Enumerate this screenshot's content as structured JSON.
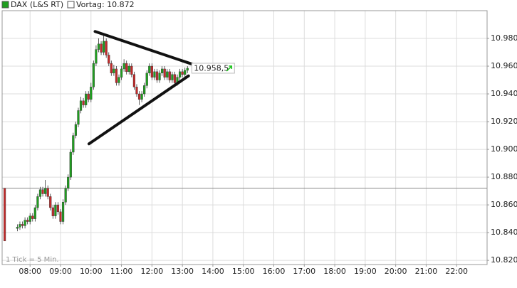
{
  "chart_data": {
    "type": "candlestick",
    "series_name": "DAX (L&S RT)",
    "reference_label": "Vortag: 10.872",
    "reference_line": 10872,
    "tick_note": "1 Tick = 5 Min.",
    "up_color": "#1f9e1f",
    "down_color": "#c42a2a",
    "x": [
      430,
      455,
      460,
      465,
      470,
      475,
      480,
      485,
      490,
      495,
      500,
      505,
      510,
      515,
      520,
      525,
      530,
      535,
      540,
      545,
      550,
      555,
      560,
      565,
      570,
      575,
      580,
      585,
      590,
      595,
      600,
      605,
      610,
      615,
      620,
      625,
      630,
      635,
      640,
      645,
      650,
      655,
      660,
      665,
      670,
      675,
      680,
      685,
      690,
      695,
      700,
      705,
      710,
      715,
      720,
      725,
      730,
      735,
      740,
      745,
      750,
      755,
      760,
      765,
      770,
      775,
      780,
      785,
      790
    ],
    "open": [
      10872,
      10843,
      10844,
      10846,
      10845,
      10849,
      10848,
      10852,
      10850,
      10858,
      10866,
      10871,
      10868,
      10872,
      10866,
      10858,
      10852,
      10860,
      10855,
      10848,
      10862,
      10872,
      10880,
      10898,
      10910,
      10918,
      10928,
      10935,
      10932,
      10940,
      10936,
      10945,
      10962,
      10972,
      10976,
      10970,
      10978,
      10968,
      10962,
      10955,
      10958,
      10948,
      10952,
      10958,
      10962,
      10956,
      10960,
      10954,
      10945,
      10940,
      10936,
      10940,
      10946,
      10955,
      10960,
      10952,
      10956,
      10950,
      10955,
      10958,
      10952,
      10956,
      10950,
      10954,
      10948,
      10952,
      10956,
      10954,
      10957
    ],
    "high": [
      10872,
      10846,
      10848,
      10848,
      10851,
      10851,
      10854,
      10854,
      10860,
      10868,
      10873,
      10873,
      10878,
      10874,
      10868,
      10860,
      10862,
      10862,
      10857,
      10864,
      10874,
      10882,
      10900,
      10912,
      10920,
      10930,
      10938,
      10937,
      10942,
      10942,
      10948,
      10964,
      10975,
      10980,
      10978,
      10982,
      10980,
      10970,
      10964,
      10961,
      10960,
      10954,
      10960,
      10965,
      10964,
      10962,
      10962,
      10956,
      10947,
      10942,
      10942,
      10948,
      10957,
      10962,
      10962,
      10958,
      10958,
      10957,
      10960,
      10960,
      10958,
      10958,
      10956,
      10956,
      10954,
      10958,
      10958,
      10959,
      10960
    ],
    "low": [
      10834,
      10841,
      10842,
      10843,
      10843,
      10846,
      10846,
      10848,
      10848,
      10856,
      10864,
      10866,
      10866,
      10864,
      10856,
      10850,
      10850,
      10853,
      10846,
      10846,
      10860,
      10870,
      10878,
      10896,
      10908,
      10916,
      10926,
      10930,
      10930,
      10934,
      10934,
      10943,
      10960,
      10970,
      10968,
      10968,
      10966,
      10960,
      10953,
      10953,
      10946,
      10946,
      10950,
      10956,
      10954,
      10954,
      10952,
      10943,
      10938,
      10932,
      10934,
      10938,
      10944,
      10953,
      10950,
      10950,
      10948,
      10948,
      10953,
      10950,
      10950,
      10948,
      10948,
      10946,
      10946,
      10950,
      10952,
      10952,
      10955
    ],
    "close": [
      10834,
      10844,
      10846,
      10845,
      10849,
      10848,
      10852,
      10850,
      10858,
      10866,
      10871,
      10868,
      10872,
      10866,
      10858,
      10852,
      10860,
      10855,
      10848,
      10862,
      10872,
      10880,
      10898,
      10910,
      10918,
      10928,
      10935,
      10932,
      10940,
      10936,
      10945,
      10962,
      10972,
      10976,
      10970,
      10978,
      10968,
      10962,
      10955,
      10958,
      10948,
      10952,
      10958,
      10962,
      10956,
      10960,
      10954,
      10945,
      10940,
      10936,
      10940,
      10946,
      10955,
      10960,
      10952,
      10956,
      10950,
      10955,
      10958,
      10952,
      10956,
      10950,
      10954,
      10948,
      10952,
      10956,
      10954,
      10957,
      10958.5
    ],
    "last_price": 10958.5,
    "last_price_label": "10.958,5",
    "trendlines": [
      {
        "x": [
          608,
          803
        ],
        "y": [
          10985,
          10961
        ]
      },
      {
        "x": [
          596,
          792
        ],
        "y": [
          10904,
          10953
        ]
      }
    ],
    "xlim": [
      425,
      1380
    ],
    "ylim": [
      10817,
      11000
    ],
    "xticks": [
      {
        "value": 480,
        "label": "08:00"
      },
      {
        "value": 540,
        "label": "09:00"
      },
      {
        "value": 600,
        "label": "10:00"
      },
      {
        "value": 660,
        "label": "11:00"
      },
      {
        "value": 720,
        "label": "12:00"
      },
      {
        "value": 780,
        "label": "13:00"
      },
      {
        "value": 840,
        "label": "14:00"
      },
      {
        "value": 900,
        "label": "15:00"
      },
      {
        "value": 960,
        "label": "16:00"
      },
      {
        "value": 1020,
        "label": "17:00"
      },
      {
        "value": 1080,
        "label": "18:00"
      },
      {
        "value": 1140,
        "label": "19:00"
      },
      {
        "value": 1200,
        "label": "20:00"
      },
      {
        "value": 1260,
        "label": "21:00"
      },
      {
        "value": 1320,
        "label": "22:00"
      }
    ],
    "yticks": [
      {
        "value": 10820,
        "label": "10.820"
      },
      {
        "value": 10840,
        "label": "10.840"
      },
      {
        "value": 10860,
        "label": "10.860"
      },
      {
        "value": 10880,
        "label": "10.880"
      },
      {
        "value": 10900,
        "label": "10.900"
      },
      {
        "value": 10920,
        "label": "10.920"
      },
      {
        "value": 10940,
        "label": "10.940"
      },
      {
        "value": 10960,
        "label": "10.960"
      },
      {
        "value": 10980,
        "label": "10.980"
      }
    ],
    "grid": true
  }
}
